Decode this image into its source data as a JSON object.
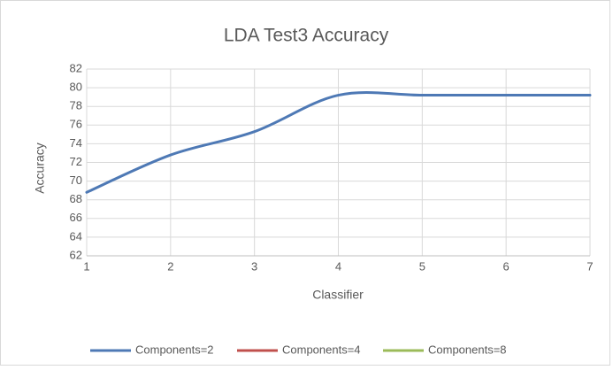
{
  "chart_data": {
    "type": "line",
    "title": "LDA Test3 Accuracy",
    "x_label": "Classifier",
    "y_label": "Accuracy",
    "x": [
      1,
      2,
      3,
      4,
      5,
      6,
      7
    ],
    "series": [
      {
        "name": "Components=2",
        "color": "#4e79b5",
        "values": [
          68.8,
          72.8,
          75.3,
          79.2,
          79.2,
          79.2,
          79.2
        ]
      },
      {
        "name": "Components=4",
        "color": "#c0504d",
        "values": [
          null,
          null,
          null,
          null,
          null,
          null,
          null
        ]
      },
      {
        "name": "Components=8",
        "color": "#9bbb59",
        "values": [
          null,
          null,
          null,
          null,
          null,
          null,
          null
        ]
      }
    ],
    "xlim": [
      1,
      7
    ],
    "xticks": [
      1,
      2,
      3,
      4,
      5,
      6,
      7
    ],
    "ylim": [
      62,
      82
    ],
    "yticks": [
      62,
      64,
      66,
      68,
      70,
      72,
      74,
      76,
      78,
      80,
      82
    ],
    "grid": true,
    "smooth": true,
    "legend": "bottom"
  }
}
